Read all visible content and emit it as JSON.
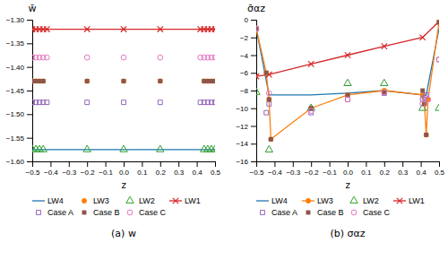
{
  "chart_data": [
    {
      "type": "scatter",
      "title": "(a) w",
      "x_label": "z",
      "y_label": "w̄",
      "xlim": [
        -0.5,
        0.5
      ],
      "ylim": [
        -1.6,
        -1.3
      ],
      "xticks": [
        {
          "value": -0.5,
          "label": "−0.5"
        },
        {
          "value": -0.4,
          "label": "−0.4"
        },
        {
          "value": -0.3,
          "label": "−0.3"
        },
        {
          "value": -0.2,
          "label": "−0.2"
        },
        {
          "value": -0.1,
          "label": "−0.1"
        },
        {
          "value": 0.0,
          "label": "0.0"
        },
        0.1,
        0.2,
        0.3,
        0.4,
        0.5
      ],
      "yticks": [
        {
          "value": -1.3,
          "label": "−1.30"
        },
        {
          "value": -1.35,
          "label": "−1.35"
        },
        {
          "value": -1.4,
          "label": "−1.40"
        },
        {
          "value": -1.45,
          "label": "−1.45"
        },
        {
          "value": -1.5,
          "label": "−1.50"
        },
        {
          "value": -1.55,
          "label": "−1.55"
        },
        {
          "value": -1.6,
          "label": "−1.60"
        }
      ],
      "legend": "bottom",
      "series": [
        {
          "name": "LW4",
          "type": "hline",
          "line_style": "solid",
          "values": [
            -1.575
          ]
        },
        {
          "name": "LW3",
          "type": "scatter",
          "marker": "circle",
          "x": [
            -0.5,
            -0.48,
            -0.46,
            -0.44,
            -0.2,
            0.0,
            0.2,
            0.44,
            0.46,
            0.48,
            0.5
          ],
          "values": [
            -1.43,
            -1.43,
            -1.43,
            -1.43,
            -1.43,
            -1.43,
            -1.43,
            -1.43,
            -1.43,
            -1.43,
            -1.43
          ]
        },
        {
          "name": "LW2",
          "type": "scatter",
          "marker": "triangle-open",
          "x": [
            -0.5,
            -0.48,
            -0.46,
            -0.44,
            -0.2,
            0.0,
            0.2,
            0.44,
            0.46,
            0.48,
            0.5
          ],
          "values": [
            -1.575,
            -1.575,
            -1.575,
            -1.575,
            -1.575,
            -1.575,
            -1.575,
            -1.575,
            -1.575,
            -1.575,
            -1.575
          ]
        },
        {
          "name": "LW1",
          "type": "line",
          "marker": "x",
          "line_style": "solid",
          "x": [
            -0.5,
            -0.48,
            -0.46,
            -0.44,
            -0.42,
            -0.2,
            0.0,
            0.2,
            0.42,
            0.44,
            0.46,
            0.48,
            0.5
          ],
          "values": [
            -1.32,
            -1.32,
            -1.32,
            -1.32,
            -1.32,
            -1.32,
            -1.32,
            -1.32,
            -1.32,
            -1.32,
            -1.32,
            -1.32,
            -1.32
          ]
        },
        {
          "name": "Case A",
          "type": "scatter",
          "marker": "square-open",
          "x": [
            -0.5,
            -0.48,
            -0.46,
            -0.44,
            -0.42,
            -0.2,
            0.0,
            0.2,
            0.42,
            0.44,
            0.46,
            0.48,
            0.5
          ],
          "values": [
            -1.475,
            -1.475,
            -1.475,
            -1.475,
            -1.475,
            -1.475,
            -1.475,
            -1.475,
            -1.475,
            -1.475,
            -1.475,
            -1.475,
            -1.475
          ]
        },
        {
          "name": "Case B",
          "type": "scatter",
          "marker": "square",
          "x": [
            -0.5,
            -0.48,
            -0.46,
            -0.44,
            -0.2,
            0.0,
            0.2,
            0.44,
            0.46,
            0.48,
            0.5
          ],
          "values": [
            -1.43,
            -1.43,
            -1.43,
            -1.43,
            -1.43,
            -1.43,
            -1.43,
            -1.43,
            -1.43,
            -1.43,
            -1.43
          ]
        },
        {
          "name": "Case C",
          "type": "scatter",
          "marker": "circle-open",
          "x": [
            -0.5,
            -0.48,
            -0.46,
            -0.44,
            -0.42,
            -0.2,
            0.0,
            0.2,
            0.42,
            0.44,
            0.46,
            0.48,
            0.5
          ],
          "values": [
            -1.38,
            -1.38,
            -1.38,
            -1.38,
            -1.38,
            -1.38,
            -1.38,
            -1.38,
            -1.38,
            -1.38,
            -1.38,
            -1.38,
            -1.38
          ]
        }
      ]
    },
    {
      "type": "line",
      "title": "(b) σαz",
      "x_label": "z",
      "y_label": "σ̄αz",
      "xlim": [
        -0.5,
        0.5
      ],
      "ylim": [
        -16,
        0
      ],
      "xticks": [
        {
          "value": -0.5,
          "label": "−0.5"
        },
        {
          "value": -0.4,
          "label": "−0.4"
        },
        {
          "value": -0.3,
          "label": "−0.3"
        },
        {
          "value": -0.2,
          "label": "−0.2"
        },
        {
          "value": -0.1,
          "label": "−0.1"
        },
        {
          "value": 0.0,
          "label": "0.0"
        },
        0.1,
        0.2,
        0.3,
        0.4,
        0.5
      ],
      "yticks": [
        0,
        {
          "value": -2,
          "label": "−2"
        },
        {
          "value": -4,
          "label": "−4"
        },
        {
          "value": -6,
          "label": "−6"
        },
        {
          "value": -8,
          "label": "−8"
        },
        {
          "value": -10,
          "label": "−10"
        },
        {
          "value": -12,
          "label": "−12"
        },
        {
          "value": -14,
          "label": "−14"
        },
        {
          "value": -16,
          "label": "−16"
        }
      ],
      "legend": "bottom",
      "series": [
        {
          "name": "LW4",
          "type": "line",
          "line_style": "solid",
          "x": [
            -0.5,
            -0.43,
            -0.2,
            0.0,
            0.2,
            0.41,
            0.43,
            0.5
          ],
          "values": [
            -1.0,
            -8.5,
            -8.5,
            -8.3,
            -8.0,
            -8.5,
            -8.5,
            -1.0
          ]
        },
        {
          "name": "LW3",
          "type": "line",
          "marker": "circle",
          "line_style": "solid",
          "x": [
            -0.5,
            -0.445,
            -0.43,
            -0.42,
            -0.2,
            0.0,
            0.2,
            0.41,
            0.42,
            0.43,
            0.44,
            0.5
          ],
          "values": [
            -1.0,
            -6.0,
            -9.0,
            -13.5,
            -10.0,
            -8.5,
            -8.0,
            -8.5,
            -9.5,
            -13.0,
            -9.0,
            -0.3
          ]
        },
        {
          "name": "LW2",
          "type": "scatter",
          "marker": "triangle-open",
          "x": [
            -0.5,
            -0.43,
            -0.2,
            0.0,
            0.2,
            0.41,
            0.5
          ],
          "values": [
            -8.2,
            -14.7,
            -10.0,
            -7.2,
            -7.2,
            -10.0,
            -10.0
          ]
        },
        {
          "name": "LW1",
          "type": "line",
          "marker": "x",
          "line_style": "solid",
          "x": [
            -0.5,
            -0.43,
            -0.2,
            0.0,
            0.2,
            0.41,
            0.5
          ],
          "values": [
            -6.4,
            -6.2,
            -5.0,
            -4.0,
            -3.0,
            -2.0,
            -0.2
          ]
        },
        {
          "name": "Case A",
          "type": "scatter",
          "marker": "square-open",
          "x": [
            -0.5,
            -0.445,
            -0.43,
            -0.2,
            0.0,
            0.2,
            0.41,
            0.42,
            0.43,
            0.5
          ],
          "values": [
            -1.0,
            -10.5,
            -9.5,
            -10.5,
            -9.0,
            -8.3,
            -9.0,
            -8.8,
            -8.5,
            -4.5
          ]
        },
        {
          "name": "Case B",
          "type": "scatter",
          "marker": "square",
          "x": [
            -0.5,
            -0.445,
            -0.43,
            -0.42,
            -0.2,
            0.0,
            0.2,
            0.41,
            0.42,
            0.43,
            0.5
          ],
          "values": [
            -1.0,
            -6.0,
            -9.0,
            -13.5,
            -10.0,
            -8.5,
            -8.2,
            -8.0,
            -9.5,
            -13.0,
            -0.3
          ]
        },
        {
          "name": "Case C",
          "type": "scatter",
          "marker": "circle-open",
          "x": [
            -0.5,
            -0.43,
            -0.2,
            0.0,
            0.2,
            0.41,
            0.44,
            0.5
          ],
          "values": [
            -1.0,
            -8.3,
            -10.3,
            -9.0,
            -8.2,
            -9.5,
            -9.0,
            -4.5
          ]
        }
      ]
    }
  ]
}
